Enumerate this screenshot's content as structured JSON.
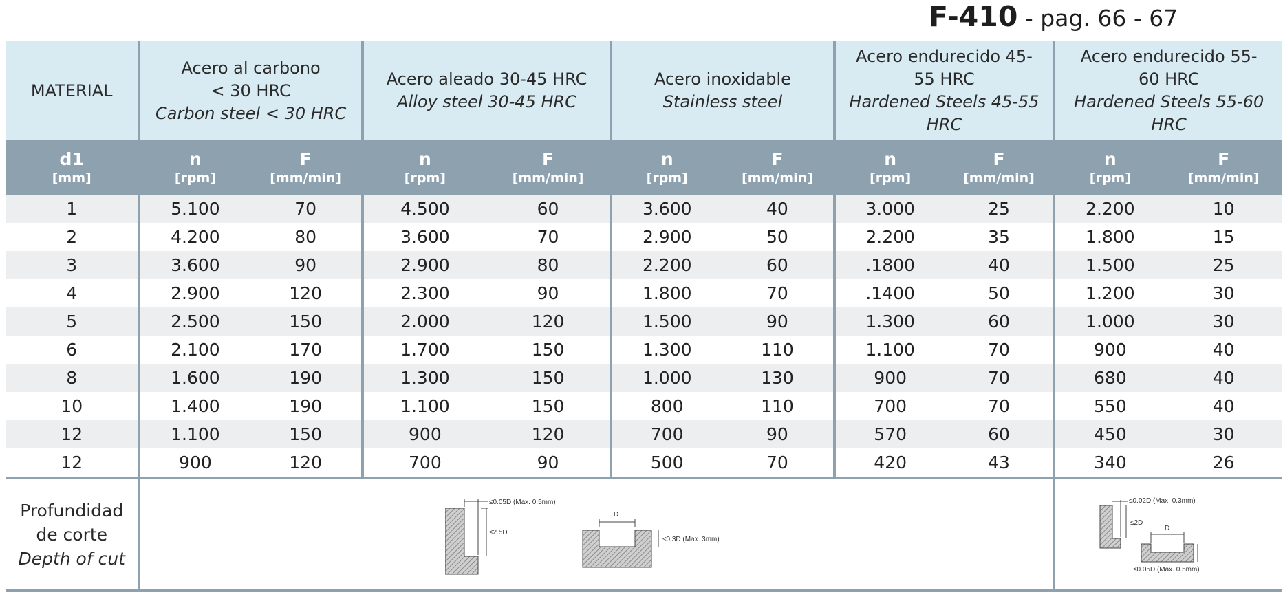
{
  "header": {
    "code": "F-410",
    "pages": " - pag. 66 - 67"
  },
  "materials": {
    "label": "MATERIAL",
    "groups": [
      {
        "line1": "Acero al carbono",
        "line2": "< 30 HRC",
        "en": "Carbon steel < 30 HRC"
      },
      {
        "line1": "Acero aleado 30-45 HRC",
        "line2": "",
        "en": "Alloy steel 30-45 HRC"
      },
      {
        "line1": "Acero inoxidable",
        "line2": "",
        "en": "Stainless steel"
      },
      {
        "line1": "Acero endurecido 45-",
        "line2": "55 HRC",
        "en": "Hardened Steels 45-55 HRC"
      },
      {
        "line1": "Acero endurecido 55-",
        "line2": "60 HRC",
        "en": "Hardened Steels 55-60 HRC"
      }
    ]
  },
  "units": {
    "d1": "d1",
    "d1_unit": "[mm]",
    "n": "n",
    "n_unit": "[rpm]",
    "f": "F",
    "f_unit": "[mm/min]"
  },
  "rows": [
    {
      "d": "1",
      "v": [
        "5.100",
        "70",
        "4.500",
        "60",
        "3.600",
        "40",
        "3.000",
        "25",
        "2.200",
        "10"
      ]
    },
    {
      "d": "2",
      "v": [
        "4.200",
        "80",
        "3.600",
        "70",
        "2.900",
        "50",
        "2.200",
        "35",
        "1.800",
        "15"
      ]
    },
    {
      "d": "3",
      "v": [
        "3.600",
        "90",
        "2.900",
        "80",
        "2.200",
        "60",
        ".1800",
        "40",
        "1.500",
        "25"
      ]
    },
    {
      "d": "4",
      "v": [
        "2.900",
        "120",
        "2.300",
        "90",
        "1.800",
        "70",
        ".1400",
        "50",
        "1.200",
        "30"
      ]
    },
    {
      "d": "5",
      "v": [
        "2.500",
        "150",
        "2.000",
        "120",
        "1.500",
        "90",
        "1.300",
        "60",
        "1.000",
        "30"
      ]
    },
    {
      "d": "6",
      "v": [
        "2.100",
        "170",
        "1.700",
        "150",
        "1.300",
        "110",
        "1.100",
        "70",
        "900",
        "40"
      ]
    },
    {
      "d": "8",
      "v": [
        "1.600",
        "190",
        "1.300",
        "150",
        "1.000",
        "130",
        "900",
        "70",
        "680",
        "40"
      ]
    },
    {
      "d": "10",
      "v": [
        "1.400",
        "190",
        "1.100",
        "150",
        "800",
        "110",
        "700",
        "70",
        "550",
        "40"
      ]
    },
    {
      "d": "12",
      "v": [
        "1.100",
        "150",
        "900",
        "120",
        "700",
        "90",
        "570",
        "60",
        "450",
        "30"
      ]
    },
    {
      "d": "12",
      "v": [
        "900",
        "120",
        "700",
        "90",
        "500",
        "70",
        "420",
        "43",
        "340",
        "26"
      ]
    }
  ],
  "depth": {
    "es1": "Profundidad",
    "es2": "de corte",
    "en": "Depth of cut",
    "left_diagram": {
      "top": "≤0.05D (Max. 0.5mm)",
      "side": "≤2.5D",
      "d": "D",
      "slot": "≤0.3D (Max. 3mm)"
    },
    "right_diagram": {
      "top": "≤0.02D (Max. 0.3mm)",
      "side": "≤2D",
      "d": "D",
      "bottom": "≤0.05D (Max. 0.5mm)"
    }
  },
  "colors": {
    "header_bg": "#d8ebf2",
    "unit_bg": "#8ea1ae",
    "stripe": "#eceef0"
  }
}
